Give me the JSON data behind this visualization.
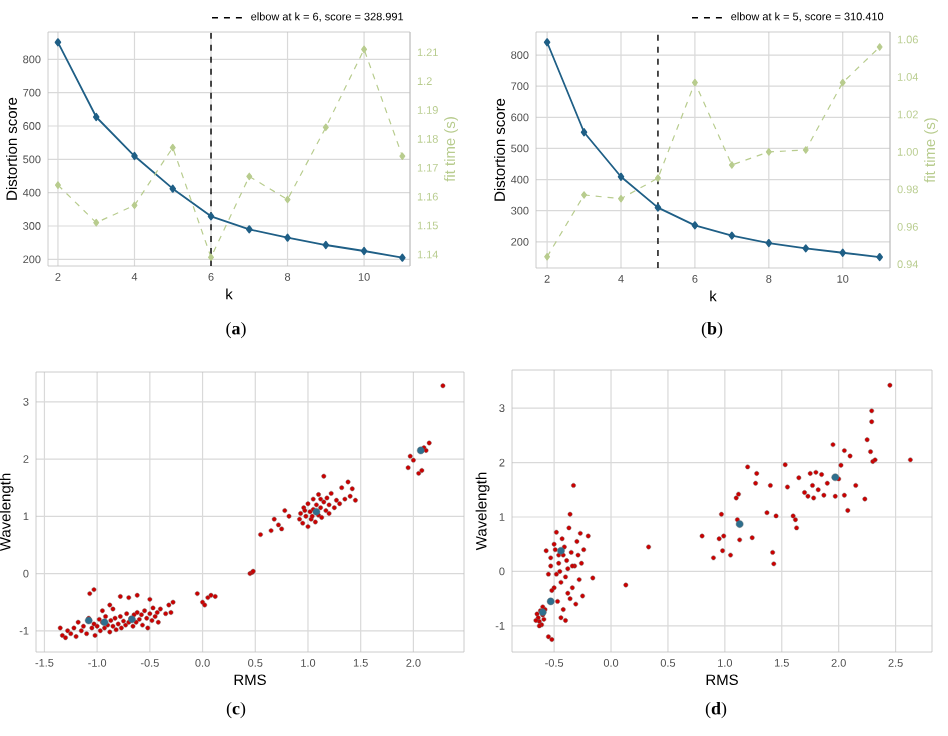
{
  "chart_data": [
    {
      "type": "line",
      "xlabel": "k",
      "ylabel": "Distortion score",
      "y2label": "fit time (s)",
      "annotations": [
        "(**a**)"
      ],
      "x": [
        2,
        3,
        4,
        5,
        6,
        7,
        8,
        9,
        10,
        11
      ],
      "xlim": [
        1.74,
        11.2
      ],
      "xticks": [
        2,
        4,
        6,
        8,
        10
      ],
      "ylim": [
        180,
        882
      ],
      "yticks": [
        200,
        300,
        400,
        500,
        600,
        700,
        800
      ],
      "y2lim": [
        1.136,
        1.217
      ],
      "y2ticks": [
        1.14,
        1.15,
        1.16,
        1.17,
        1.18,
        1.19,
        1.2,
        1.21
      ],
      "grid": true,
      "legend": "top right",
      "marker": "diamond",
      "series": [
        {
          "color": "#1f5f86",
          "line_style": "solid",
          "values": [
            851,
            627,
            510,
            412,
            329,
            290,
            265,
            243,
            225,
            205
          ]
        },
        {
          "color": "#b8cc8e",
          "line_style": "dashed",
          "axis": "y2",
          "values": [
            1.164,
            1.151,
            1.157,
            1.177,
            1.139,
            1.167,
            1.159,
            1.184,
            1.211,
            1.174
          ]
        }
      ],
      "ref_lines": [
        {
          "axis": "x",
          "value": 6,
          "label": "elbow at k = 6, score = 328.991",
          "color": "#000000",
          "line_style": "dashed"
        }
      ]
    },
    {
      "type": "line",
      "xlabel": "k",
      "ylabel": "Distortion score",
      "y2label": "fit time (s)",
      "annotations": [
        "(**b**)"
      ],
      "x": [
        2,
        3,
        4,
        5,
        6,
        7,
        8,
        9,
        10,
        11
      ],
      "xlim": [
        1.7,
        11.28
      ],
      "xticks": [
        2,
        4,
        6,
        8,
        10
      ],
      "ylim": [
        116,
        874
      ],
      "yticks": [
        200,
        300,
        400,
        500,
        600,
        700,
        800
      ],
      "y2lim": [
        0.938,
        1.064
      ],
      "y2ticks": [
        0.94,
        0.96,
        0.98,
        {
          "value": 1,
          "label": "1.00"
        },
        1.02,
        1.04,
        1.06
      ],
      "grid": true,
      "legend": "top right",
      "marker": "diamond",
      "series": [
        {
          "color": "#1f5f86",
          "line_style": "solid",
          "values": [
            841,
            552,
            409,
            310,
            253,
            220,
            196,
            179,
            165,
            151
          ]
        },
        {
          "color": "#b8cc8e",
          "line_style": "dashed",
          "axis": "y2",
          "values": [
            0.944,
            0.977,
            0.975,
            0.986,
            1.037,
            0.993,
            1.0,
            1.001,
            1.037,
            1.056
          ]
        }
      ],
      "ref_lines": [
        {
          "axis": "x",
          "value": 5,
          "label": "elbow at k = 5, score = 310.410",
          "color": "#000000",
          "line_style": "dashed"
        }
      ]
    },
    {
      "type": "scatter",
      "xlabel": "RMS",
      "ylabel": "Wavelength",
      "annotations": [
        "(**c**)"
      ],
      "xlim": [
        -1.58,
        2.48
      ],
      "ylim": [
        -1.37,
        3.52
      ],
      "xticks": [
        -1.5,
        {
          "value": -1,
          "label": "-1.0"
        },
        -0.5,
        {
          "value": 0,
          "label": "0.0"
        },
        0.5,
        {
          "value": 1,
          "label": "1.0"
        },
        1.5,
        {
          "value": 2,
          "label": "2.0"
        }
      ],
      "yticks": [
        -1,
        0,
        1,
        2,
        3
      ],
      "grid": true,
      "marker": "circle",
      "series": [
        {
          "color": "#cc0000",
          "x": [
            -1.35,
            -1.33,
            -1.3,
            -1.28,
            -1.25,
            -1.22,
            -1.2,
            -1.18,
            -1.15,
            -1.13,
            -1.1,
            -1.08,
            -1.05,
            -1.03,
            -1.02,
            -1.0,
            -0.98,
            -0.97,
            -0.95,
            -0.93,
            -0.92,
            -0.9,
            -0.88,
            -0.87,
            -0.85,
            -0.83,
            -0.82,
            -0.8,
            -0.78,
            -0.77,
            -0.75,
            -0.73,
            -0.72,
            -0.7,
            -0.68,
            -0.66,
            -0.65,
            -0.63,
            -0.62,
            -0.6,
            -0.58,
            -0.57,
            -0.55,
            -0.53,
            -0.52,
            -0.5,
            -0.48,
            -0.47,
            -0.45,
            -0.43,
            -0.42,
            -0.4,
            -0.35,
            -0.32,
            -0.3,
            -0.28,
            -1.07,
            -1.03,
            -0.88,
            -0.78,
            -0.7,
            -0.62,
            -0.5,
            -0.85,
            -0.95,
            -0.05,
            0.0,
            0.02,
            0.05,
            0.08,
            0.12,
            0.45,
            0.47,
            0.48,
            0.55,
            0.65,
            0.68,
            0.72,
            0.75,
            0.78,
            0.82,
            0.92,
            0.93,
            0.95,
            0.96,
            0.98,
            1.0,
            1.0,
            1.02,
            1.03,
            1.05,
            1.05,
            1.07,
            1.08,
            1.1,
            1.1,
            1.12,
            1.13,
            1.15,
            1.15,
            1.17,
            1.18,
            1.2,
            1.2,
            1.22,
            1.25,
            1.27,
            1.3,
            1.32,
            1.35,
            1.38,
            1.4,
            1.42,
            1.45,
            0.97,
            1.04,
            1.12,
            1.95,
            1.97,
            2.0,
            2.05,
            2.08,
            2.1,
            2.12,
            2.15,
            2.28
          ],
          "values": [
            -0.95,
            -1.08,
            -1.12,
            -1.0,
            -1.05,
            -0.95,
            -1.1,
            -0.85,
            -1.0,
            -0.92,
            -1.05,
            -0.78,
            -0.95,
            -0.88,
            -1.08,
            -0.92,
            -0.8,
            -1.0,
            -0.85,
            -0.95,
            -0.75,
            -0.9,
            -1.02,
            -0.82,
            -0.92,
            -0.78,
            -0.98,
            -0.88,
            -0.75,
            -0.95,
            -0.83,
            -0.9,
            -0.7,
            -0.85,
            -0.78,
            -0.92,
            -0.72,
            -0.85,
            -0.68,
            -0.8,
            -0.72,
            -0.9,
            -0.65,
            -0.78,
            -0.95,
            -0.7,
            -0.82,
            -0.6,
            -0.75,
            -0.68,
            -0.85,
            -0.62,
            -0.7,
            -0.55,
            -0.68,
            -0.5,
            -0.35,
            -0.28,
            -0.55,
            -0.4,
            -0.42,
            -0.38,
            -0.45,
            -0.62,
            -0.65,
            -0.35,
            -0.5,
            -0.55,
            -0.42,
            -0.38,
            -0.4,
            0.0,
            0.02,
            0.04,
            0.68,
            0.75,
            0.95,
            0.85,
            0.78,
            1.1,
            1.0,
            0.95,
            1.05,
            0.88,
            1.15,
            1.0,
            0.82,
            1.22,
            1.08,
            0.95,
            1.3,
            1.12,
            0.9,
            1.2,
            1.02,
            1.38,
            1.15,
            0.98,
            1.25,
            1.7,
            1.1,
            1.32,
            1.05,
            1.2,
            1.4,
            1.15,
            1.28,
            1.22,
            1.5,
            1.3,
            1.6,
            1.35,
            1.48,
            1.28,
            1.1,
            1.0,
            1.3,
            1.85,
            2.05,
            1.98,
            1.75,
            1.8,
            2.2,
            2.15,
            2.28,
            3.28
          ]
        },
        {
          "color": "#2e6f8e",
          "x": [
            -1.08,
            -0.93,
            -0.67,
            1.08,
            2.07
          ],
          "values": [
            -0.82,
            -0.85,
            -0.8,
            1.08,
            2.15
          ]
        }
      ]
    },
    {
      "type": "scatter",
      "xlabel": "RMS",
      "ylabel": "Wavelength",
      "annotations": [
        "(**d**)"
      ],
      "xlim": [
        -0.87,
        2.82
      ],
      "ylim": [
        -1.48,
        3.7
      ],
      "xticks": [
        -0.5,
        {
          "value": 0,
          "label": "0.0"
        },
        0.5,
        {
          "value": 1,
          "label": "1.0"
        },
        1.5,
        {
          "value": 2,
          "label": "2.0"
        },
        2.5
      ],
      "yticks": [
        -1,
        0,
        1,
        2,
        3
      ],
      "grid": true,
      "marker": "circle",
      "series": [
        {
          "color": "#cc0000",
          "x": [
            -0.65,
            -0.64,
            -0.63,
            -0.62,
            -0.61,
            -0.6,
            -0.6,
            -0.66,
            -0.59,
            -0.63,
            -0.58,
            -0.55,
            -0.52,
            -0.57,
            -0.55,
            -0.53,
            -0.5,
            -0.5,
            -0.48,
            -0.47,
            -0.46,
            -0.45,
            -0.44,
            -0.43,
            -0.42,
            -0.41,
            -0.4,
            -0.39,
            -0.38,
            -0.37,
            -0.36,
            -0.35,
            -0.34,
            -0.33,
            -0.32,
            -0.31,
            -0.3,
            -0.29,
            -0.28,
            -0.27,
            -0.26,
            -0.25,
            -0.24,
            -0.2,
            -0.16,
            -0.52,
            -0.48,
            -0.44,
            -0.4,
            -0.36,
            -0.53,
            -0.49,
            -0.46,
            -0.42,
            -0.38,
            -0.34,
            0.13,
            0.33,
            0.8,
            0.9,
            0.95,
            0.97,
            0.98,
            0.99,
            1.05,
            1.1,
            1.11,
            1.12,
            1.13,
            1.2,
            1.24,
            1.27,
            1.28,
            1.37,
            1.4,
            1.42,
            1.43,
            1.45,
            1.53,
            1.55,
            1.6,
            1.62,
            1.63,
            1.65,
            1.7,
            1.73,
            1.75,
            1.77,
            1.78,
            1.8,
            1.82,
            1.85,
            1.87,
            1.9,
            1.95,
            1.97,
            2.0,
            2.02,
            2.05,
            2.05,
            2.08,
            2.1,
            2.15,
            2.23,
            2.25,
            2.28,
            2.29,
            2.29,
            2.3,
            2.32,
            2.45,
            2.63
          ],
          "values": [
            -0.78,
            -0.85,
            -0.92,
            -0.72,
            -0.98,
            -0.8,
            -0.65,
            -0.9,
            -0.88,
            -1.0,
            -0.7,
            -1.2,
            -1.25,
            0.38,
            -0.05,
            0.1,
            0.5,
            -0.3,
            0.72,
            -0.55,
            0.3,
            0.0,
            -0.2,
            0.6,
            -0.7,
            0.45,
            -0.1,
            0.2,
            -0.4,
            0.8,
            1.05,
            0.35,
            -0.3,
            1.58,
            0.1,
            -0.6,
            0.55,
            0.3,
            -0.15,
            0.7,
            0.15,
            -0.45,
            0.4,
            0.65,
            -0.12,
            -0.35,
            -0.05,
            -0.85,
            -0.9,
            -0.5,
            0.25,
            0.4,
            0.15,
            0.3,
            0.05,
            0.1,
            -0.25,
            0.45,
            0.65,
            0.25,
            0.6,
            1.05,
            0.38,
            0.65,
            0.3,
            1.35,
            0.95,
            1.42,
            0.58,
            1.92,
            0.62,
            1.62,
            1.8,
            1.08,
            1.58,
            0.35,
            0.14,
            1.02,
            1.96,
            1.55,
            1.02,
            0.95,
            0.8,
            1.72,
            1.45,
            1.38,
            1.8,
            1.58,
            1.35,
            1.82,
            1.5,
            1.78,
            1.4,
            1.62,
            2.33,
            1.38,
            1.7,
            1.95,
            1.4,
            2.22,
            1.12,
            2.12,
            1.58,
            1.33,
            2.42,
            2.2,
            2.95,
            2.75,
            2.02,
            2.05,
            3.42,
            2.05
          ]
        },
        {
          "color": "#2e6f8e",
          "x": [
            -0.6,
            -0.53,
            -0.44,
            1.13,
            1.97
          ],
          "values": [
            -0.75,
            -0.55,
            0.38,
            0.87,
            1.73
          ]
        }
      ]
    }
  ]
}
